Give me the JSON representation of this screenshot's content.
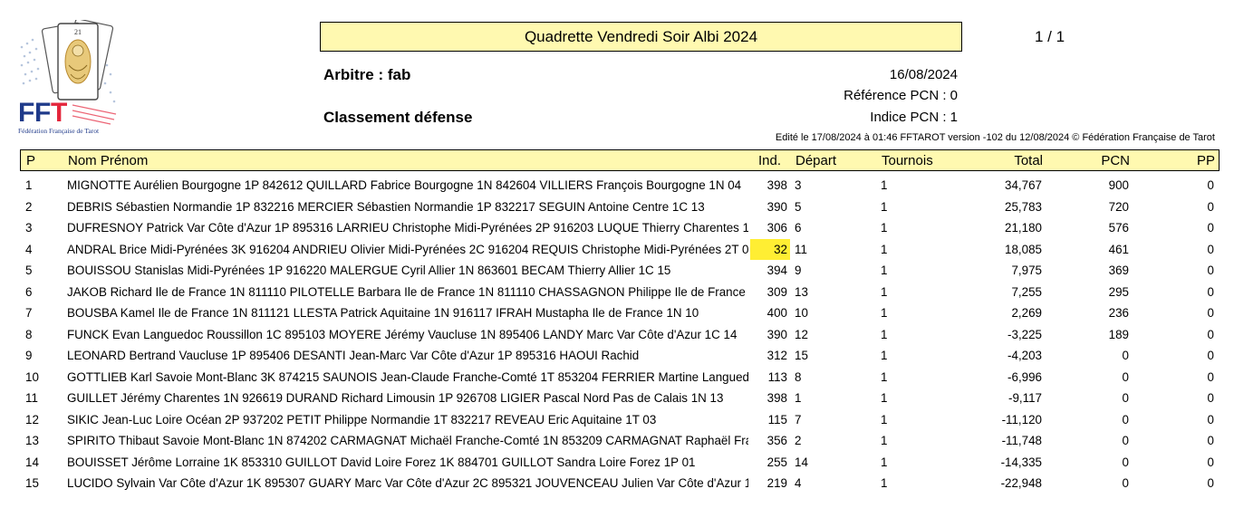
{
  "logo": {
    "text": "FFT",
    "caption": "Fédération Française de Tarot",
    "colors": {
      "blue": "#1f3a8a",
      "red": "#e4253b",
      "card_gold": "#c99a3a"
    },
    "icon": "tarot-card-logo"
  },
  "header": {
    "title": "Quadrette Vendredi Soir Albi 2024",
    "page": "1 / 1",
    "arbitre": "Arbitre : fab",
    "classement": "Classement défense",
    "date": "16/08/2024",
    "reference": "Référence PCN : 0",
    "indice": "Indice PCN : 1",
    "edite": "Edité le 17/08/2024 à 01:46 FFTAROT version -102 du 12/08/2024 © Fédération Française de Tarot"
  },
  "table": {
    "highlight_color": "#ffee33",
    "header_color": "#fff9b0",
    "columns": {
      "p": "P",
      "nom": "Nom Prénom",
      "ind": "Ind.",
      "depart": "Départ",
      "tournois": "Tournois",
      "total": "Total",
      "pcn": "PCN",
      "pp": "PP"
    },
    "rows": [
      {
        "p": "1",
        "nom": "MIGNOTTE Aurélien Bourgogne 1P 842612 QUILLARD Fabrice Bourgogne 1N 842604 VILLIERS François Bourgogne 1N 04",
        "ind": "398",
        "depart": "3",
        "tournois": "1",
        "total": "34,767",
        "pcn": "900",
        "pp": "0",
        "highlight": false
      },
      {
        "p": "2",
        "nom": "DEBRIS Sébastien Normandie 1P 832216 MERCIER Sébastien Normandie 1P 832217 SEGUIN Antoine Centre 1C 13",
        "ind": "390",
        "depart": "5",
        "tournois": "1",
        "total": "25,783",
        "pcn": "720",
        "pp": "0",
        "highlight": false
      },
      {
        "p": "3",
        "nom": "DUFRESNOY Patrick Var Côte d'Azur 1P 895316 LARRIEU Christophe Midi-Pyrénées 2P 916203 LUQUE Thierry Charentes 1",
        "ind": "306",
        "depart": "6",
        "tournois": "1",
        "total": "21,180",
        "pcn": "576",
        "pp": "0",
        "highlight": false
      },
      {
        "p": "4",
        "nom": "ANDRAL Brice Midi-Pyrénées 3K 916204 ANDRIEU Olivier Midi-Pyrénées 2C 916204 REQUIS Christophe Midi-Pyrénées 2T 0",
        "ind": "32",
        "depart": "11",
        "tournois": "1",
        "total": "18,085",
        "pcn": "461",
        "pp": "0",
        "highlight": true
      },
      {
        "p": "5",
        "nom": "BOUISSOU Stanislas Midi-Pyrénées 1P 916220 MALERGUE Cyril Allier 1N 863601 BECAM Thierry Allier 1C 15",
        "ind": "394",
        "depart": "9",
        "tournois": "1",
        "total": "7,975",
        "pcn": "369",
        "pp": "0",
        "highlight": false
      },
      {
        "p": "6",
        "nom": "JAKOB Richard Ile de France 1N 811110 PILOTELLE Barbara Ile de France 1N 811110 CHASSAGNON Philippe Ile de France",
        "ind": "309",
        "depart": "13",
        "tournois": "1",
        "total": "7,255",
        "pcn": "295",
        "pp": "0",
        "highlight": false
      },
      {
        "p": "7",
        "nom": "BOUSBA Kamel Ile de France 1N 811121 LLESTA Patrick Aquitaine 1N 916117 IFRAH Mustapha Ile de France 1N 10",
        "ind": "400",
        "depart": "10",
        "tournois": "1",
        "total": "2,269",
        "pcn": "236",
        "pp": "0",
        "highlight": false
      },
      {
        "p": "8",
        "nom": "FUNCK Evan Languedoc Roussillon 1C 895103 MOYERE Jérémy Vaucluse 1N 895406 LANDY Marc Var Côte d'Azur 1C 14",
        "ind": "390",
        "depart": "12",
        "tournois": "1",
        "total": "-3,225",
        "pcn": "189",
        "pp": "0",
        "highlight": false
      },
      {
        "p": "9",
        "nom": "LEONARD Bertrand Vaucluse 1P 895406 DESANTI Jean-Marc Var Côte d'Azur 1P 895316 HAOUI Rachid",
        "ind": "312",
        "depart": "15",
        "tournois": "1",
        "total": "-4,203",
        "pcn": "0",
        "pp": "0",
        "highlight": false
      },
      {
        "p": "10",
        "nom": "GOTTLIEB Karl Savoie Mont-Blanc 3K 874215 SAUNOIS Jean-Claude Franche-Comté 1T 853204 FERRIER Martine Langued",
        "ind": "113",
        "depart": "8",
        "tournois": "1",
        "total": "-6,996",
        "pcn": "0",
        "pp": "0",
        "highlight": false
      },
      {
        "p": "11",
        "nom": "GUILLET Jérémy Charentes 1N 926619 DURAND Richard Limousin 1P 926708 LIGIER Pascal Nord Pas de Calais 1N 13",
        "ind": "398",
        "depart": "1",
        "tournois": "1",
        "total": "-9,117",
        "pcn": "0",
        "pp": "0",
        "highlight": false
      },
      {
        "p": "12",
        "nom": "SIKIC Jean-Luc Loire Océan 2P 937202 PETIT Philippe Normandie 1T 832217 REVEAU Eric Aquitaine 1T 03",
        "ind": "115",
        "depart": "7",
        "tournois": "1",
        "total": "-11,120",
        "pcn": "0",
        "pp": "0",
        "highlight": false
      },
      {
        "p": "13",
        "nom": "SPIRITO Thibaut Savoie Mont-Blanc 1N 874202 CARMAGNAT Michaël Franche-Comté 1N 853209 CARMAGNAT Raphaël Fra",
        "ind": "356",
        "depart": "2",
        "tournois": "1",
        "total": "-11,748",
        "pcn": "0",
        "pp": "0",
        "highlight": false
      },
      {
        "p": "14",
        "nom": "BOUISSET Jérôme Lorraine 1K 853310 GUILLOT David Loire Forez 1K 884701 GUILLOT Sandra Loire Forez 1P 01",
        "ind": "255",
        "depart": "14",
        "tournois": "1",
        "total": "-14,335",
        "pcn": "0",
        "pp": "0",
        "highlight": false
      },
      {
        "p": "15",
        "nom": "LUCIDO Sylvain Var Côte d'Azur 1K 895307 GUARY Marc Var Côte d'Azur 2C 895321 JOUVENCEAU Julien Var Côte d'Azur 1",
        "ind": "219",
        "depart": "4",
        "tournois": "1",
        "total": "-22,948",
        "pcn": "0",
        "pp": "0",
        "highlight": false
      }
    ]
  }
}
